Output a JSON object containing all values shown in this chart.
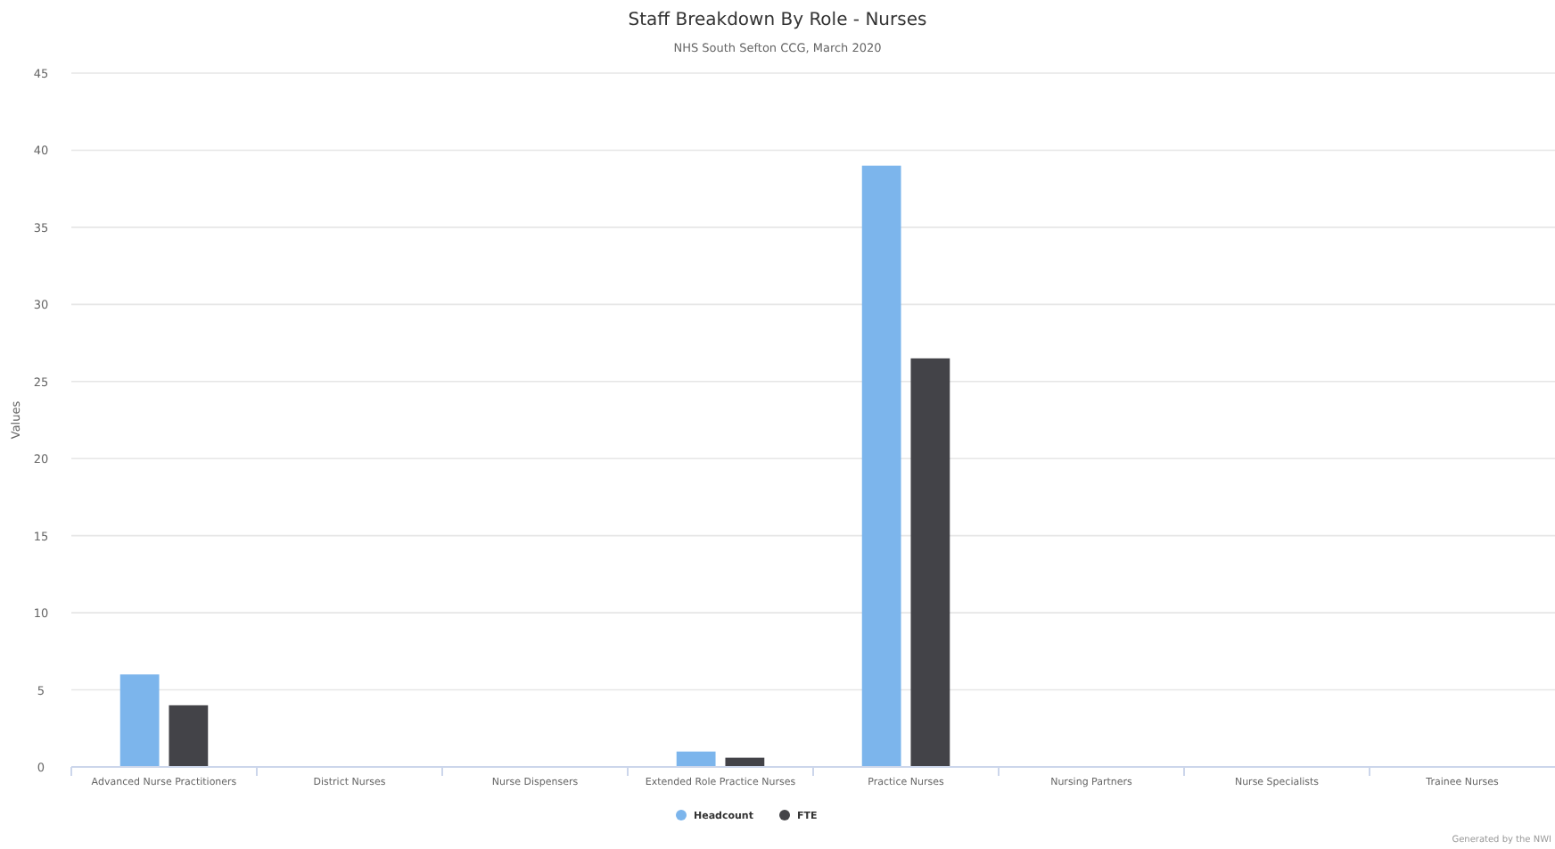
{
  "chart_data": {
    "type": "bar",
    "title": "Staff Breakdown By Role - Nurses",
    "subtitle": "NHS South Sefton CCG, March 2020",
    "ylabel": "Values",
    "categories": [
      "Advanced Nurse Practitioners",
      "District Nurses",
      "Nurse Dispensers",
      "Extended Role Practice Nurses",
      "Practice Nurses",
      "Nursing Partners",
      "Nurse Specialists",
      "Trainee Nurses"
    ],
    "series": [
      {
        "name": "Headcount",
        "color": "#7cb5ec",
        "values": [
          6,
          0,
          0,
          1,
          39,
          0,
          0,
          0
        ]
      },
      {
        "name": "FTE",
        "color": "#434348",
        "values": [
          4,
          0,
          0,
          0.6,
          26.5,
          0,
          0,
          0
        ]
      }
    ],
    "ylim": [
      0,
      45
    ],
    "yticks": [
      0,
      5,
      10,
      15,
      20,
      25,
      30,
      35,
      40,
      45
    ],
    "grid": "y",
    "legend": "bottom",
    "annotations": [
      "Generated by the NWI"
    ]
  }
}
